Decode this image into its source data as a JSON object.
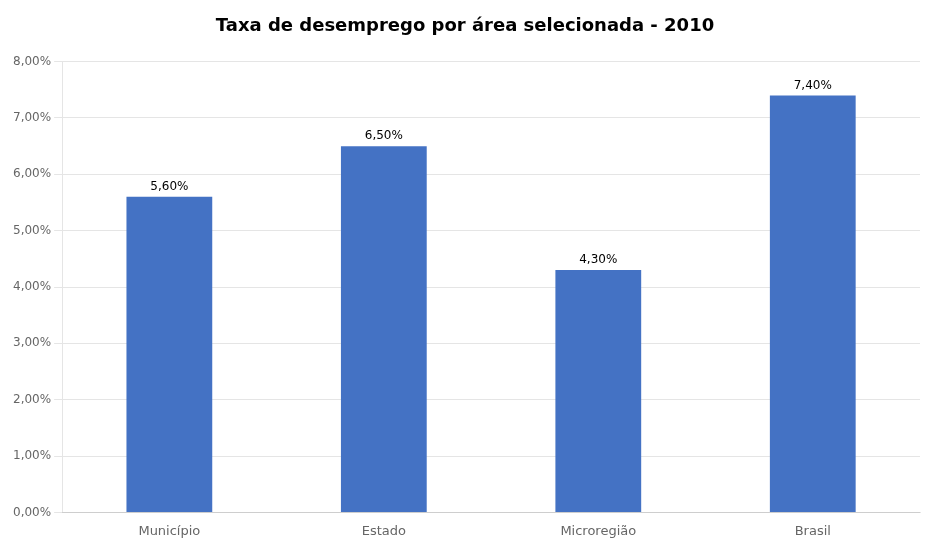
{
  "chart_data": {
    "type": "bar",
    "title": "Taxa de desemprego por área selecionada - 2010",
    "categories": [
      "Município",
      "Estado",
      "Microregião",
      "Brasil"
    ],
    "values": [
      0.056,
      0.065,
      0.043,
      0.074
    ],
    "value_labels": [
      "5,60%",
      "6,50%",
      "4,30%",
      "7,40%"
    ],
    "data_labels": true,
    "color": "#4472C4",
    "ylim": [
      0,
      0.08
    ],
    "yticks": [
      {
        "value": 0.0,
        "label": "0,00%"
      },
      {
        "value": 0.01,
        "label": "1,00%"
      },
      {
        "value": 0.02,
        "label": "2,00%"
      },
      {
        "value": 0.03,
        "label": "3,00%"
      },
      {
        "value": 0.04,
        "label": "4,00%"
      },
      {
        "value": 0.05,
        "label": "5,00%"
      },
      {
        "value": 0.06,
        "label": "6,00%"
      },
      {
        "value": 0.07,
        "label": "7,00%"
      },
      {
        "value": 0.08,
        "label": "8,00%"
      }
    ],
    "grid": true
  }
}
